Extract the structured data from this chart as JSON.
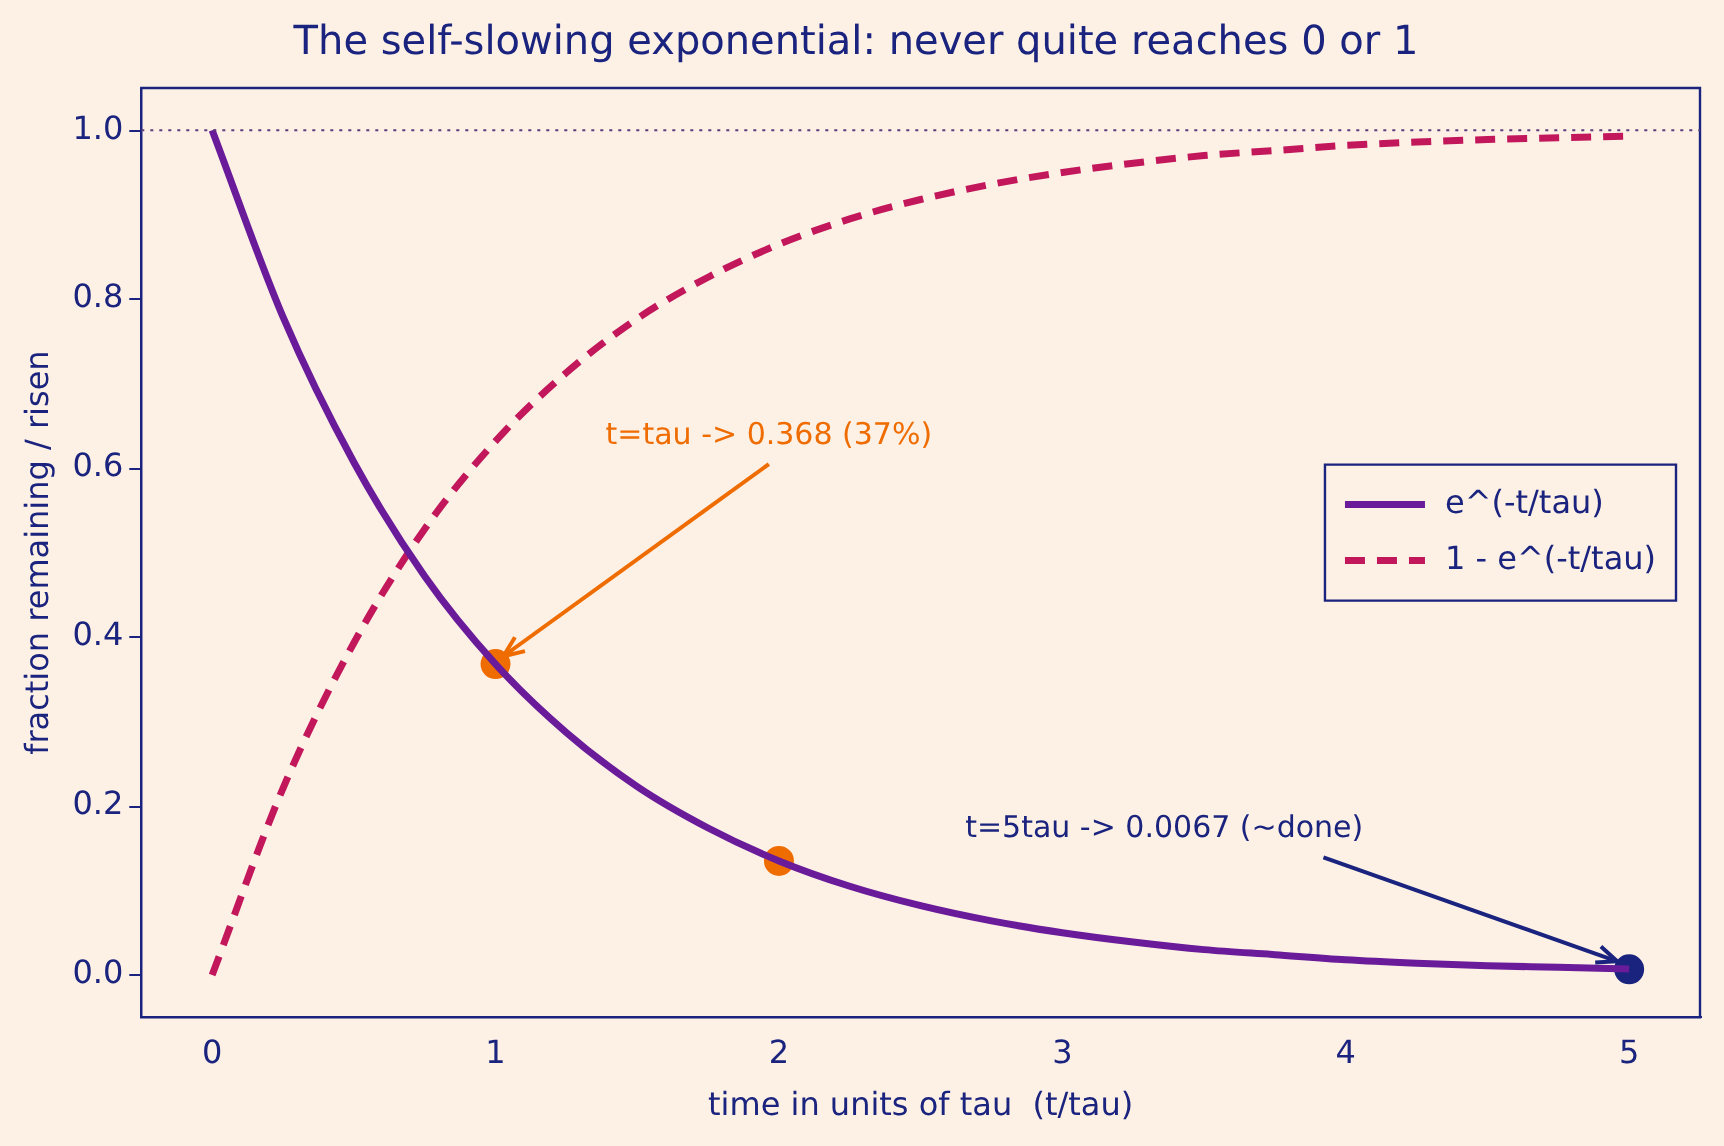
{
  "chart_data": {
    "type": "line",
    "title": "The self-slowing exponential: never quite reaches 0 or 1",
    "xlabel": "time in units of tau  (t/tau)",
    "ylabel": "fraction remaining / risen",
    "x": [
      0,
      0.25,
      0.5,
      0.75,
      1,
      1.25,
      1.5,
      1.75,
      2,
      2.25,
      2.5,
      2.75,
      3,
      3.25,
      3.5,
      3.75,
      4,
      4.25,
      4.5,
      4.75,
      5
    ],
    "series": [
      {
        "name": "e^(-t/tau)",
        "color": "#6a1b9a",
        "line_style": "solid",
        "values": [
          1,
          0.779,
          0.607,
          0.472,
          0.368,
          0.287,
          0.223,
          0.174,
          0.135,
          0.105,
          0.082,
          0.064,
          0.05,
          0.039,
          0.03,
          0.024,
          0.018,
          0.014,
          0.011,
          0.009,
          0.007
        ]
      },
      {
        "name": "1 - e^(-t/tau)",
        "color": "#c2185b",
        "line_style": "dashed",
        "values": [
          0,
          0.221,
          0.393,
          0.528,
          0.632,
          0.713,
          0.777,
          0.826,
          0.865,
          0.895,
          0.918,
          0.936,
          0.95,
          0.961,
          0.97,
          0.976,
          0.982,
          0.986,
          0.989,
          0.991,
          0.993
        ]
      },
      {
        "type": "scatter",
        "color": "#ef6c00",
        "marker": "circle",
        "x": [
          1,
          2
        ],
        "values": [
          0.368,
          0.135
        ]
      },
      {
        "type": "scatter",
        "color": "#1a237e",
        "marker": "circle",
        "x": [
          5
        ],
        "values": [
          0.0067
        ]
      }
    ],
    "annotations": [
      {
        "text": "t=tau -> 0.368 (37%)",
        "x": 1,
        "y": 0.368
      },
      {
        "text": "t=5tau -> 0.0067 (~done)",
        "x": 5,
        "y": 0.0067
      }
    ],
    "ref_lines": [
      {
        "axis": "y",
        "value": 1.0,
        "color": "#5c3d7a",
        "line_style": "dotted"
      }
    ],
    "xlim": [
      -0.25,
      5.25
    ],
    "ylim": [
      -0.05,
      1.05
    ],
    "xticks": [
      0,
      1,
      2,
      3,
      4,
      5
    ],
    "yticks": [
      {
        "value": 0,
        "label": "0.0"
      },
      {
        "value": 0.2,
        "label": "0.2"
      },
      {
        "value": 0.4,
        "label": "0.4"
      },
      {
        "value": 0.6,
        "label": "0.6"
      },
      {
        "value": 0.8,
        "label": "0.8"
      },
      {
        "value": 1.0,
        "label": "1.0"
      }
    ],
    "grid": false,
    "legend": "right"
  }
}
